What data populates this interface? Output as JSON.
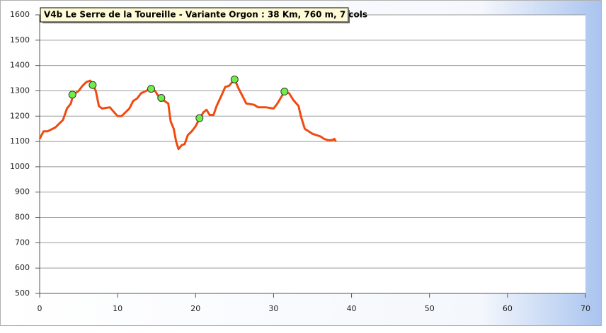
{
  "chart_data": {
    "type": "line",
    "title": "V4b Le Serre de la Toureille - Variante Orgon : 38 Km, 760 m, 7 cols",
    "x": [
      0,
      0.5,
      1,
      2,
      3,
      3.5,
      4,
      4.3,
      5,
      5.5,
      6,
      6.5,
      6.8,
      7.2,
      7.6,
      8,
      9,
      10,
      10.5,
      11,
      11.5,
      12,
      12.5,
      13,
      14,
      14.3,
      14.8,
      15.2,
      15.6,
      16,
      16.5,
      16.8,
      17.2,
      17.5,
      17.8,
      18.2,
      18.6,
      19,
      19.5,
      20,
      20.5,
      21,
      21.4,
      21.8,
      22.3,
      22.7,
      23.3,
      23.8,
      24.3,
      25,
      25.5,
      26,
      26.5,
      27.5,
      28,
      29,
      30,
      30.5,
      31.4,
      32,
      32.5,
      33.2,
      33.5,
      34,
      34.5,
      35,
      36,
      36.5,
      37,
      37.5,
      37.8,
      38
    ],
    "values": [
      1110,
      1140,
      1140,
      1155,
      1185,
      1230,
      1250,
      1285,
      1300,
      1320,
      1335,
      1340,
      1325,
      1300,
      1240,
      1230,
      1235,
      1200,
      1200,
      1215,
      1230,
      1260,
      1270,
      1290,
      1305,
      1308,
      1300,
      1280,
      1270,
      1260,
      1250,
      1180,
      1150,
      1100,
      1070,
      1085,
      1090,
      1125,
      1140,
      1160,
      1190,
      1215,
      1225,
      1205,
      1205,
      1240,
      1280,
      1315,
      1320,
      1345,
      1310,
      1280,
      1250,
      1245,
      1235,
      1235,
      1230,
      1250,
      1297,
      1290,
      1265,
      1240,
      1200,
      1150,
      1140,
      1130,
      1120,
      1110,
      1105,
      1105,
      1110,
      1100
    ],
    "color": "#f04a10",
    "markers": {
      "x": [
        4.2,
        6.8,
        14.3,
        15.6,
        20.5,
        25,
        31.4
      ],
      "values": [
        1285,
        1323,
        1308,
        1272,
        1192,
        1345,
        1297
      ],
      "color": "#6fee4a"
    },
    "xlim": [
      0,
      70
    ],
    "xticks": [
      0,
      10,
      20,
      30,
      40,
      50,
      60,
      70
    ],
    "ylim": [
      500,
      1600
    ],
    "yticks": [
      500,
      600,
      700,
      800,
      900,
      1000,
      1100,
      1200,
      1300,
      1400,
      1500,
      1600
    ],
    "grid": true
  }
}
